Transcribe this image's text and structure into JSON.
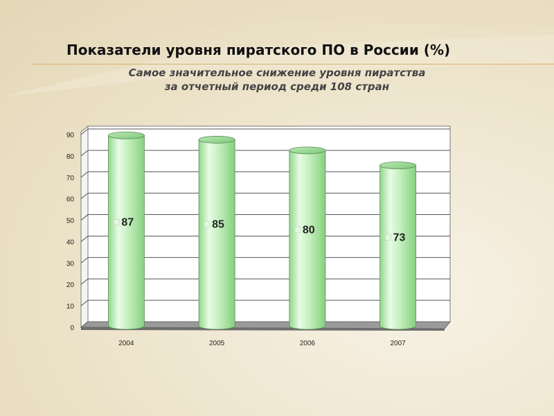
{
  "slide": {
    "title": "Показатели уровня пиратского ПО в России (%)",
    "subtitle_line1": "Самое значительное снижение уровня пиратства",
    "subtitle_line2": "за отчетный период среди 108 стран"
  },
  "chart_data": {
    "type": "bar",
    "bar_style": "3d-cylinder",
    "categories": [
      "2004",
      "2005",
      "2006",
      "2007"
    ],
    "values": [
      87,
      85,
      80,
      73
    ],
    "data_labels": [
      "87",
      "85",
      "80",
      "73"
    ],
    "yticks": [
      "0",
      "10",
      "20",
      "30",
      "40",
      "50",
      "60",
      "70",
      "80",
      "90"
    ],
    "ylim": [
      0,
      90
    ],
    "grid": true,
    "colors": {
      "bar": "#b5ecae",
      "bar_edge": "#5a8a55",
      "floor": "#8c8c8c"
    }
  }
}
